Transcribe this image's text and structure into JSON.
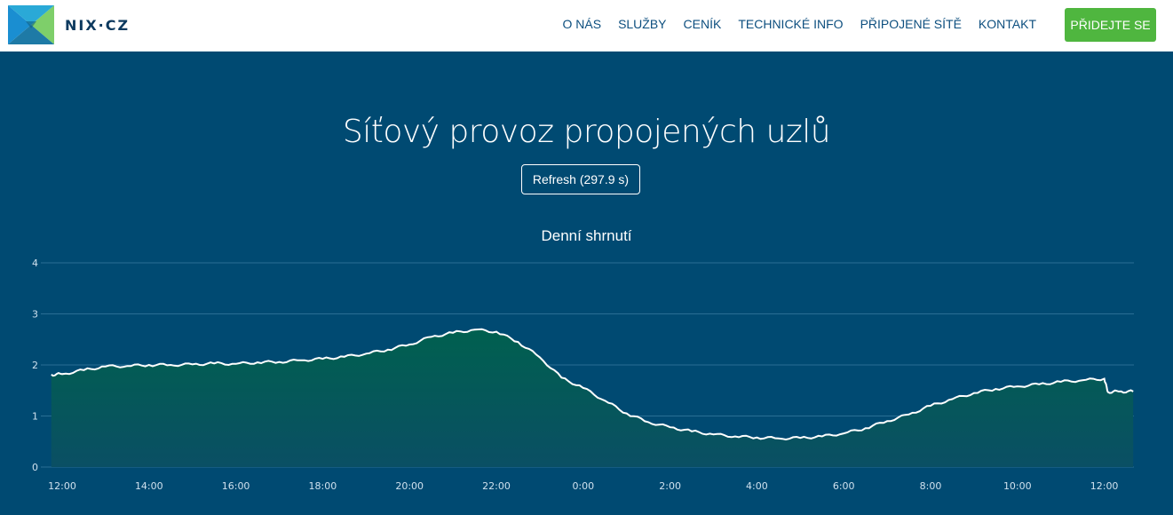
{
  "header": {
    "logo_text": "NIX·CZ",
    "nav": [
      "O NÁS",
      "SLUŽBY",
      "CENÍK",
      "TECHNICKÉ INFO",
      "PŘIPOJENÉ SÍTĚ",
      "KONTAKT"
    ],
    "cta_label": "PŘIDEJTE SE"
  },
  "page": {
    "title": "Síťový provoz propojených uzlů",
    "refresh_label": "Refresh (297.9 s)"
  },
  "colors": {
    "background": "#004a72",
    "line": "#ffffff",
    "fill": "#00604f",
    "cta": "#4fb63f"
  },
  "chart_data": {
    "type": "area",
    "title": "Denní shrnutí",
    "xlabel": "",
    "ylabel": "",
    "ylim": [
      0,
      4
    ],
    "yticks": [
      0,
      1,
      2,
      3,
      4
    ],
    "xticks": [
      "12:00",
      "14:00",
      "16:00",
      "18:00",
      "20:00",
      "22:00",
      "0:00",
      "2:00",
      "4:00",
      "6:00",
      "8:00",
      "10:00",
      "12:00"
    ],
    "grid": true,
    "series": [
      {
        "x": [
          "11:45",
          "12:00",
          "12:30",
          "13:00",
          "13:30",
          "14:00",
          "14:30",
          "15:00",
          "15:30",
          "16:00",
          "16:30",
          "17:00",
          "17:30",
          "18:00",
          "18:30",
          "19:00",
          "19:30",
          "20:00",
          "20:30",
          "21:00",
          "21:30",
          "22:00",
          "22:30",
          "23:00",
          "23:30",
          "0:00",
          "0:30",
          "1:00",
          "1:30",
          "2:00",
          "2:30",
          "3:00",
          "3:30",
          "4:00",
          "4:30",
          "5:00",
          "5:30",
          "6:00",
          "6:30",
          "7:00",
          "7:30",
          "8:00",
          "8:30",
          "9:00",
          "9:30",
          "10:00",
          "10:30",
          "11:00",
          "11:30",
          "12:00",
          "12:05",
          "12:20",
          "12:40"
        ],
        "values": [
          1.81,
          1.82,
          1.9,
          1.97,
          1.98,
          2.0,
          2.0,
          2.01,
          2.03,
          2.02,
          2.05,
          2.06,
          2.09,
          2.12,
          2.16,
          2.22,
          2.3,
          2.4,
          2.55,
          2.63,
          2.69,
          2.65,
          2.45,
          2.15,
          1.75,
          1.55,
          1.3,
          1.05,
          0.88,
          0.78,
          0.7,
          0.64,
          0.6,
          0.58,
          0.56,
          0.57,
          0.6,
          0.66,
          0.76,
          0.9,
          1.03,
          1.2,
          1.33,
          1.45,
          1.53,
          1.58,
          1.62,
          1.67,
          1.7,
          1.73,
          1.47,
          1.48,
          1.48
        ]
      }
    ]
  }
}
